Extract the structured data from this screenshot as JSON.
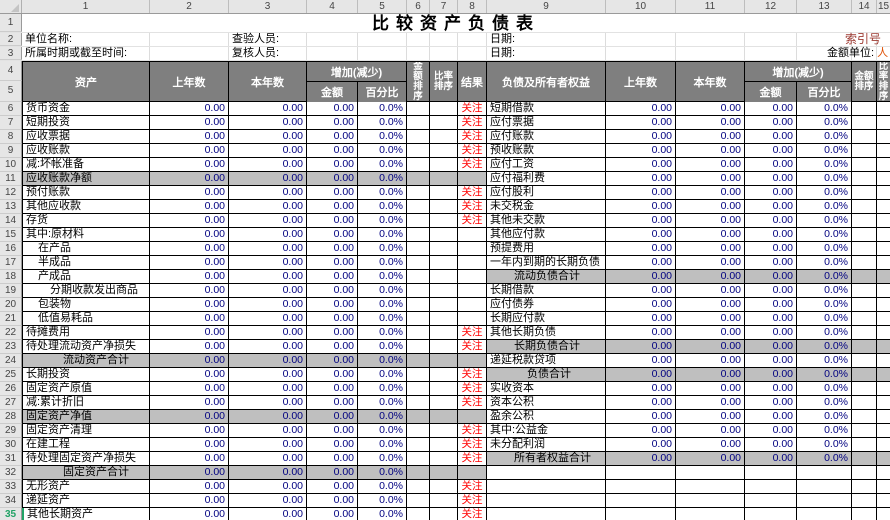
{
  "title": "比较资产负债表",
  "column_numbers": [
    "1",
    "2",
    "3",
    "4",
    "5",
    "6",
    "7",
    "8",
    "9",
    "10",
    "11",
    "12",
    "13",
    "14",
    "15"
  ],
  "row_numbers_top": [
    "1",
    "2",
    "3"
  ],
  "info": {
    "row2": {
      "unit_name_label": "单位名称:",
      "checker_label": "查验人员:",
      "date_label": "日期:",
      "index_label": "索引号"
    },
    "row3": {
      "period_label": "所属时期或截至时间:",
      "reviewer_label": "复核人员:",
      "date_label": "日期:",
      "amount_unit_label": "金额单位:",
      "amount_unit_value": "人"
    }
  },
  "header": {
    "row4_no": "4",
    "row5_no": "5",
    "asset": "资产",
    "prev_year": "上年数",
    "current_year": "本年数",
    "change": "增加(减少)",
    "amount": "金额",
    "percent": "百分比",
    "amount_rank": "金额排序",
    "ratio_rank": "比率排序",
    "result": "结果",
    "liability_equity": "负债及所有者权益"
  },
  "cells": {
    "zero": "0.00",
    "zero_percent": "0.0%",
    "attention": "关注"
  },
  "left_rows": [
    {
      "no": "6",
      "name": "货币资金",
      "indent": 0,
      "gray": false,
      "result": "关注",
      "selected": false
    },
    {
      "no": "7",
      "name": "短期投资",
      "indent": 0,
      "gray": false,
      "result": "关注",
      "selected": false
    },
    {
      "no": "8",
      "name": "应收票据",
      "indent": 0,
      "gray": false,
      "result": "关注",
      "selected": false
    },
    {
      "no": "9",
      "name": "应收账款",
      "indent": 0,
      "gray": false,
      "result": "关注",
      "selected": false
    },
    {
      "no": "10",
      "name": "减:坏帐准备",
      "indent": 0,
      "gray": false,
      "result": "关注",
      "selected": false
    },
    {
      "no": "11",
      "name": "应收账款净额",
      "indent": 0,
      "gray": true,
      "result": "",
      "selected": false
    },
    {
      "no": "12",
      "name": "预付账款",
      "indent": 0,
      "gray": false,
      "result": "关注",
      "selected": false
    },
    {
      "no": "13",
      "name": "其他应收款",
      "indent": 0,
      "gray": false,
      "result": "关注",
      "selected": false
    },
    {
      "no": "14",
      "name": "存货",
      "indent": 0,
      "gray": false,
      "result": "关注",
      "selected": false
    },
    {
      "no": "15",
      "name": "其中:原材料",
      "indent": 0,
      "gray": false,
      "result": "",
      "selected": false
    },
    {
      "no": "16",
      "name": "在产品",
      "indent": 1,
      "gray": false,
      "result": "",
      "selected": false
    },
    {
      "no": "17",
      "name": "半成品",
      "indent": 1,
      "gray": false,
      "result": "",
      "selected": false
    },
    {
      "no": "18",
      "name": "产成品",
      "indent": 1,
      "gray": false,
      "result": "",
      "selected": false
    },
    {
      "no": "19",
      "name": "分期收款发出商品",
      "indent": 2,
      "gray": false,
      "result": "",
      "selected": false
    },
    {
      "no": "20",
      "name": "包装物",
      "indent": 1,
      "gray": false,
      "result": "",
      "selected": false
    },
    {
      "no": "21",
      "name": "低值易耗品",
      "indent": 1,
      "gray": false,
      "result": "",
      "selected": false
    },
    {
      "no": "22",
      "name": "待摊费用",
      "indent": 0,
      "gray": false,
      "result": "关注",
      "selected": false
    },
    {
      "no": "23",
      "name": "待处理流动资产净损失",
      "indent": 0,
      "gray": false,
      "result": "关注",
      "selected": false
    },
    {
      "no": "24",
      "name": "流动资产合计",
      "indent": 3,
      "gray": true,
      "result": "",
      "selected": false
    },
    {
      "no": "25",
      "name": "长期投资",
      "indent": 0,
      "gray": false,
      "result": "关注",
      "selected": false
    },
    {
      "no": "26",
      "name": "固定资产原值",
      "indent": 0,
      "gray": false,
      "result": "关注",
      "selected": false
    },
    {
      "no": "27",
      "name": "减:累计折旧",
      "indent": 0,
      "gray": false,
      "result": "关注",
      "selected": false
    },
    {
      "no": "28",
      "name": "固定资产净值",
      "indent": 0,
      "gray": true,
      "result": "",
      "selected": false
    },
    {
      "no": "29",
      "name": "固定资产清理",
      "indent": 0,
      "gray": false,
      "result": "关注",
      "selected": false
    },
    {
      "no": "30",
      "name": "在建工程",
      "indent": 0,
      "gray": false,
      "result": "关注",
      "selected": false
    },
    {
      "no": "31",
      "name": "待处理固定资产净损失",
      "indent": 0,
      "gray": false,
      "result": "关注",
      "selected": false
    },
    {
      "no": "32",
      "name": "固定资产合计",
      "indent": 3,
      "gray": true,
      "result": "",
      "selected": false
    },
    {
      "no": "33",
      "name": "无形资产",
      "indent": 0,
      "gray": false,
      "result": "关注",
      "selected": false
    },
    {
      "no": "34",
      "name": "递延资产",
      "indent": 0,
      "gray": false,
      "result": "关注",
      "selected": false
    },
    {
      "no": "35",
      "name": "其他长期资产",
      "indent": 0,
      "gray": false,
      "result": "关注",
      "selected": true
    }
  ],
  "right_rows": [
    {
      "name": "短期借款",
      "indent": 0,
      "gray": false,
      "has_values": true
    },
    {
      "name": "应付票据",
      "indent": 0,
      "gray": false,
      "has_values": true
    },
    {
      "name": "应付账款",
      "indent": 0,
      "gray": false,
      "has_values": true
    },
    {
      "name": "预收账款",
      "indent": 0,
      "gray": false,
      "has_values": true
    },
    {
      "name": "应付工资",
      "indent": 0,
      "gray": false,
      "has_values": true
    },
    {
      "name": "应付福利费",
      "indent": 0,
      "gray": false,
      "has_values": true
    },
    {
      "name": "应付股利",
      "indent": 0,
      "gray": false,
      "has_values": true
    },
    {
      "name": "未交税金",
      "indent": 0,
      "gray": false,
      "has_values": true
    },
    {
      "name": "其他未交款",
      "indent": 0,
      "gray": false,
      "has_values": true
    },
    {
      "name": "其他应付款",
      "indent": 0,
      "gray": false,
      "has_values": true
    },
    {
      "name": "预提费用",
      "indent": 0,
      "gray": false,
      "has_values": true
    },
    {
      "name": "一年内到期的长期负债",
      "indent": 0,
      "gray": false,
      "has_values": true
    },
    {
      "name": "流动负债合计",
      "indent": 2,
      "gray": true,
      "has_values": true
    },
    {
      "name": "长期借款",
      "indent": 0,
      "gray": false,
      "has_values": true
    },
    {
      "name": "应付债券",
      "indent": 0,
      "gray": false,
      "has_values": true
    },
    {
      "name": "长期应付款",
      "indent": 0,
      "gray": false,
      "has_values": true
    },
    {
      "name": "其他长期负债",
      "indent": 0,
      "gray": false,
      "has_values": true
    },
    {
      "name": "长期负债合计",
      "indent": 2,
      "gray": true,
      "has_values": true
    },
    {
      "name": "递延税款贷项",
      "indent": 0,
      "gray": false,
      "has_values": true
    },
    {
      "name": "负债合计",
      "indent": 3,
      "gray": true,
      "has_values": true
    },
    {
      "name": "实收资本",
      "indent": 0,
      "gray": false,
      "has_values": true
    },
    {
      "name": "资本公积",
      "indent": 0,
      "gray": false,
      "has_values": true
    },
    {
      "name": "盈余公积",
      "indent": 0,
      "gray": false,
      "has_values": true
    },
    {
      "name": "其中:公益金",
      "indent": 0,
      "gray": false,
      "has_values": true
    },
    {
      "name": "未分配利润",
      "indent": 0,
      "gray": false,
      "has_values": true
    },
    {
      "name": "所有者权益合计",
      "indent": 2,
      "gray": true,
      "has_values": true
    },
    {
      "name": "",
      "indent": 0,
      "gray": false,
      "has_values": false
    },
    {
      "name": "",
      "indent": 0,
      "gray": false,
      "has_values": false
    },
    {
      "name": "",
      "indent": 0,
      "gray": false,
      "has_values": false
    },
    {
      "name": "",
      "indent": 0,
      "gray": false,
      "has_values": false
    }
  ],
  "colors": {
    "attention_red": "#ff0000",
    "number_navy": "#000080",
    "header_gray": "#7f7f7f",
    "subtotal_gray": "#bfbfbf",
    "selected_green": "#21a366",
    "index_label_red": "#9e3b33",
    "amount_unit_red": "#e05206"
  }
}
